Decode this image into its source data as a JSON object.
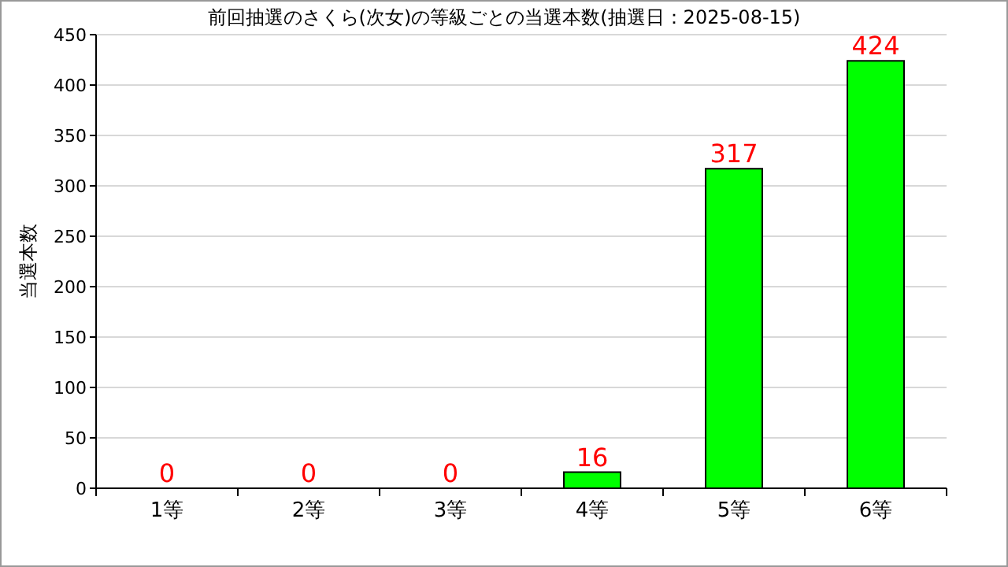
{
  "chart_data": {
    "type": "bar",
    "title": "前回抽選のさくら(次女)の等級ごとの当選本数(抽選日：2025-08-15)",
    "ylabel": "当選本数",
    "categories": [
      "1等",
      "2等",
      "3等",
      "4等",
      "5等",
      "6等"
    ],
    "values": [
      0,
      0,
      0,
      16,
      317,
      424
    ],
    "color": "#00ff00",
    "ylim": [
      0,
      450
    ],
    "yticks": [
      0,
      50,
      100,
      150,
      200,
      250,
      300,
      350,
      400,
      450
    ],
    "grid": "y",
    "data_labels": true
  }
}
